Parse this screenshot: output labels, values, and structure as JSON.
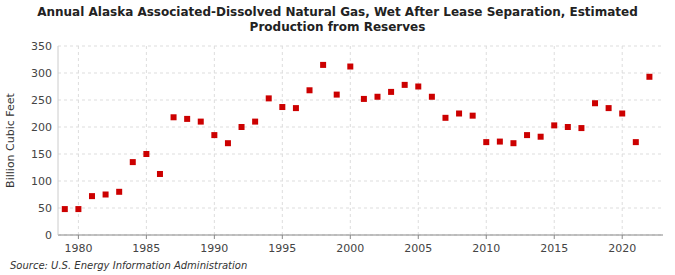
{
  "chart_data": {
    "type": "scatter",
    "title": "Annual Alaska Associated-Dissolved Natural Gas, Wet After Lease Separation, Estimated\nProduction from Reserves",
    "ylabel": "Billion Cubic Feet",
    "annotations": [
      "Source: U.S. Energy Information Administration"
    ],
    "x": [
      1979,
      1980,
      1981,
      1982,
      1983,
      1984,
      1985,
      1986,
      1987,
      1988,
      1989,
      1990,
      1991,
      1992,
      1993,
      1994,
      1995,
      1996,
      1997,
      1998,
      1999,
      2000,
      2001,
      2002,
      2003,
      2004,
      2005,
      2006,
      2007,
      2008,
      2009,
      2010,
      2011,
      2012,
      2013,
      2014,
      2015,
      2016,
      2017,
      2018,
      2019,
      2020,
      2021,
      2022
    ],
    "values": [
      48,
      48,
      72,
      75,
      80,
      135,
      150,
      113,
      218,
      215,
      210,
      185,
      170,
      200,
      210,
      253,
      237,
      235,
      268,
      315,
      260,
      312,
      252,
      256,
      265,
      278,
      275,
      256,
      217,
      225,
      221,
      172,
      173,
      170,
      185,
      182,
      203,
      200,
      198,
      244,
      235,
      225,
      172,
      293
    ],
    "color": "#cc0000",
    "marker": "square",
    "xlim": [
      1978.5,
      2023
    ],
    "xticks": [
      1980,
      1985,
      1990,
      1995,
      2000,
      2005,
      2010,
      2015,
      2020
    ],
    "ylim": [
      0,
      350
    ],
    "yticks": [
      0,
      50,
      100,
      150,
      200,
      250,
      300,
      350
    ],
    "grid": true
  }
}
